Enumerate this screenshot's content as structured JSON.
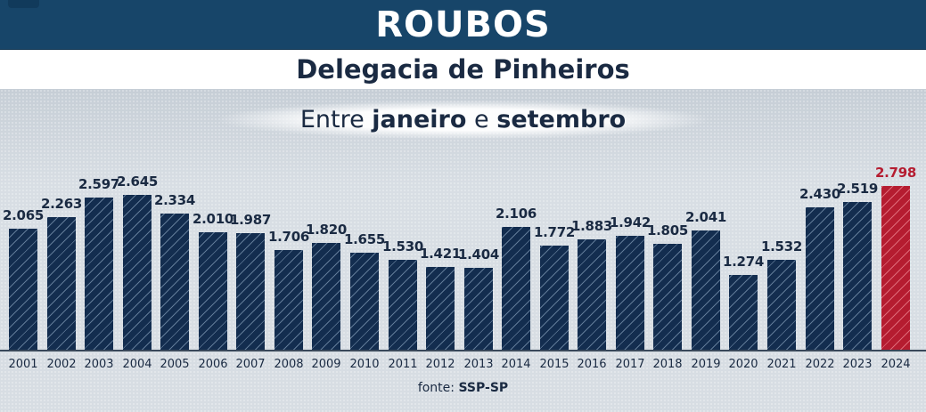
{
  "header": {
    "title": "ROUBOS",
    "subtitle": "Delegacia de Pinheiros",
    "period_prefix": "Entre",
    "period_start": "janeiro",
    "period_join": "e",
    "period_end": "setembro"
  },
  "footer": {
    "source_label": "fonte:",
    "source_value": "SSP-SP"
  },
  "colors": {
    "title_bar": "#174569",
    "bar": "#132d4f",
    "highlight_bar": "#b51c30",
    "text": "#1a2a42"
  },
  "chart_data": {
    "type": "bar",
    "title": "ROUBOS - Delegacia de Pinheiros",
    "subtitle": "Entre janeiro e setembro",
    "xlabel": "",
    "ylabel": "",
    "categories": [
      "2001",
      "2002",
      "2003",
      "2004",
      "2005",
      "2006",
      "2007",
      "2008",
      "2009",
      "2010",
      "2011",
      "2012",
      "2013",
      "2014",
      "2015",
      "2016",
      "2017",
      "2018",
      "2019",
      "2020",
      "2021",
      "2022",
      "2023",
      "2024"
    ],
    "values": [
      2065,
      2263,
      2597,
      2645,
      2334,
      2010,
      1987,
      1706,
      1820,
      1655,
      1530,
      1421,
      1404,
      2106,
      1772,
      1883,
      1942,
      1805,
      2041,
      1274,
      1532,
      2430,
      2519,
      2798
    ],
    "value_labels": [
      "2.065",
      "2.263",
      "2.597",
      "2.645",
      "2.334",
      "2.010",
      "1.987",
      "1.706",
      "1.820",
      "1.655",
      "1.530",
      "1.421",
      "1.404",
      "2.106",
      "1.772",
      "1.883",
      "1.942",
      "1.805",
      "2.041",
      "1.274",
      "1.532",
      "2.430",
      "2.519",
      "2.798"
    ],
    "highlight_index": 23,
    "ylim": [
      0,
      2800
    ],
    "grid": false,
    "legend": null,
    "source": "fonte: SSP-SP"
  }
}
